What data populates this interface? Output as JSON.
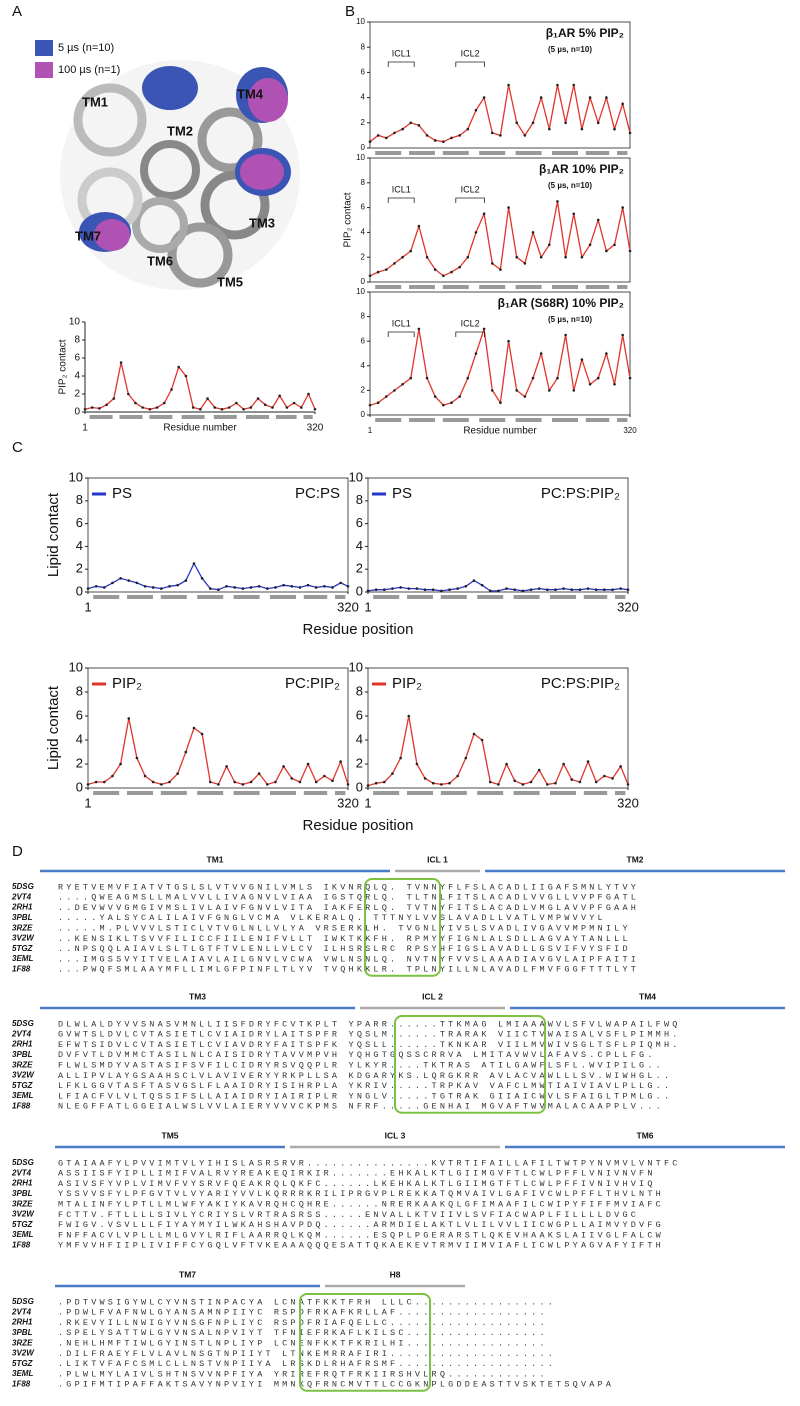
{
  "panel_labels": [
    "A",
    "B",
    "C",
    "D"
  ],
  "structure": {
    "legend": [
      {
        "text": "5 µs (n=10)",
        "color": "#3b55b4"
      },
      {
        "text": "100 µs (n=1)",
        "color": "#b052b3"
      }
    ],
    "helices": [
      "TM1",
      "TM2",
      "TM3",
      "TM4",
      "TM5",
      "TM6",
      "TM7"
    ]
  },
  "chart_data": [
    {
      "type": "line",
      "ylabel": "PIP₂ contact",
      "xlabel": "Residue number",
      "color": "#e0352c",
      "x": [
        1,
        11,
        21,
        31,
        41,
        51,
        61,
        71,
        81,
        91,
        101,
        111,
        121,
        131,
        141,
        151,
        161,
        171,
        181,
        191,
        201,
        211,
        221,
        231,
        241,
        251,
        261,
        271,
        281,
        291,
        301,
        311,
        320
      ],
      "values": [
        0.3,
        0.5,
        0.4,
        0.8,
        1.5,
        5.5,
        2,
        1,
        0.5,
        0.3,
        0.5,
        1,
        2.5,
        5,
        4,
        0.5,
        0.3,
        1.5,
        0.5,
        0.3,
        0.5,
        1,
        0.3,
        0.5,
        1.5,
        0.8,
        0.5,
        1.8,
        0.5,
        1,
        0.5,
        2,
        0.3
      ],
      "xlim": [
        1,
        320
      ],
      "xticks": [
        1,
        320
      ],
      "ylim": [
        0,
        10
      ],
      "yticks": [
        0,
        2,
        4,
        6,
        8,
        10
      ]
    },
    {
      "type": "line",
      "title": "β₁AR 5% PIP₂",
      "subtitle": "(5 µs, n=10)",
      "annotations": [
        "ICL1",
        "ICL2"
      ],
      "color": "#e0352c",
      "x": [
        1,
        11,
        21,
        31,
        41,
        51,
        61,
        71,
        81,
        91,
        101,
        111,
        121,
        131,
        141,
        151,
        161,
        171,
        181,
        191,
        201,
        211,
        221,
        231,
        241,
        251,
        261,
        271,
        281,
        291,
        301,
        311,
        320
      ],
      "values": [
        0.5,
        1,
        0.8,
        1.2,
        1.5,
        2,
        1.8,
        1,
        0.6,
        0.5,
        0.8,
        1,
        1.5,
        3,
        4,
        1.2,
        1,
        5,
        2,
        1,
        2,
        4,
        1.5,
        5,
        2,
        5,
        1.5,
        4,
        2,
        4,
        1.5,
        3.5,
        1.2
      ],
      "xlim": [
        1,
        320
      ],
      "ylim": [
        0,
        10
      ],
      "yticks": [
        0,
        2,
        4,
        6,
        8,
        10
      ]
    },
    {
      "type": "line",
      "title": "β₁AR 10% PIP₂",
      "subtitle": "(5 µs, n=10)",
      "annotations": [
        "ICL1",
        "ICL2"
      ],
      "ylabel": "PIP₂ contact",
      "color": "#e0352c",
      "x": [
        1,
        11,
        21,
        31,
        41,
        51,
        61,
        71,
        81,
        91,
        101,
        111,
        121,
        131,
        141,
        151,
        161,
        171,
        181,
        191,
        201,
        211,
        221,
        231,
        241,
        251,
        261,
        271,
        281,
        291,
        301,
        311,
        320
      ],
      "values": [
        0.5,
        0.8,
        1,
        1.5,
        2,
        2.5,
        4.5,
        2,
        1,
        0.5,
        0.8,
        1.2,
        2,
        4,
        5.5,
        1.5,
        1,
        6,
        2,
        1.5,
        4,
        2,
        3,
        6.5,
        2,
        5.5,
        2,
        3,
        5,
        2.5,
        3,
        6,
        2.5
      ],
      "xlim": [
        1,
        320
      ],
      "ylim": [
        0,
        10
      ],
      "yticks": [
        0,
        2,
        4,
        6,
        8,
        10
      ]
    },
    {
      "type": "line",
      "title": "β₁AR (S68R) 10% PIP₂",
      "subtitle": "(5 µs, n=10)",
      "annotations": [
        "ICL1",
        "ICL2"
      ],
      "xlabel": "Residue number",
      "color": "#e0352c",
      "x": [
        1,
        11,
        21,
        31,
        41,
        51,
        61,
        71,
        81,
        91,
        101,
        111,
        121,
        131,
        141,
        151,
        161,
        171,
        181,
        191,
        201,
        211,
        221,
        231,
        241,
        251,
        261,
        271,
        281,
        291,
        301,
        311,
        320
      ],
      "values": [
        0.8,
        1,
        1.5,
        2,
        2.5,
        3,
        7,
        3,
        1.5,
        0.8,
        1,
        1.5,
        3,
        5,
        7,
        2,
        1,
        6,
        2,
        1.5,
        3,
        5,
        2,
        3,
        6.5,
        2,
        4.5,
        2.5,
        3,
        5,
        2.5,
        6.5,
        3
      ],
      "xlim": [
        1,
        320
      ],
      "xticks": [
        1,
        320
      ],
      "ylim": [
        0,
        10
      ],
      "yticks": [
        0,
        2,
        4,
        6,
        8,
        10
      ]
    },
    {
      "type": "line",
      "label": "PC:PS",
      "ylabel": "Lipid contact",
      "xlabel": "Residue position",
      "legend": "upper left",
      "x": [
        1,
        11,
        21,
        31,
        41,
        51,
        61,
        71,
        81,
        91,
        101,
        111,
        121,
        131,
        141,
        151,
        161,
        171,
        181,
        191,
        201,
        211,
        221,
        231,
        241,
        251,
        261,
        271,
        281,
        291,
        301,
        311,
        320
      ],
      "series": [
        {
          "name": "PS",
          "color": "#2436c8",
          "values": [
            0.3,
            0.5,
            0.4,
            0.8,
            1.2,
            1,
            0.8,
            0.5,
            0.4,
            0.3,
            0.5,
            0.6,
            1,
            2.5,
            1.2,
            0.3,
            0.2,
            0.5,
            0.4,
            0.3,
            0.4,
            0.5,
            0.3,
            0.4,
            0.6,
            0.5,
            0.4,
            0.6,
            0.4,
            0.5,
            0.4,
            0.8,
            0.5
          ]
        }
      ],
      "xlim": [
        1,
        320
      ],
      "xticks": [
        1,
        320
      ],
      "ylim": [
        0,
        10
      ],
      "yticks": [
        0,
        2,
        4,
        6,
        8,
        10
      ]
    },
    {
      "type": "line",
      "label": "PC:PS:PIP₂",
      "legend": "upper left",
      "x": [
        1,
        11,
        21,
        31,
        41,
        51,
        61,
        71,
        81,
        91,
        101,
        111,
        121,
        131,
        141,
        151,
        161,
        171,
        181,
        191,
        201,
        211,
        221,
        231,
        241,
        251,
        261,
        271,
        281,
        291,
        301,
        311,
        320
      ],
      "series": [
        {
          "name": "PS",
          "color": "#2436c8",
          "values": [
            0.1,
            0.2,
            0.2,
            0.3,
            0.4,
            0.3,
            0.3,
            0.2,
            0.2,
            0.1,
            0.2,
            0.3,
            0.5,
            1,
            0.6,
            0.1,
            0.1,
            0.3,
            0.2,
            0.1,
            0.2,
            0.3,
            0.2,
            0.2,
            0.3,
            0.2,
            0.2,
            0.3,
            0.2,
            0.2,
            0.2,
            0.3,
            0.2
          ]
        }
      ],
      "xlim": [
        1,
        320
      ],
      "xticks": [
        1,
        320
      ],
      "ylim": [
        0,
        10
      ],
      "yticks": [
        0,
        2,
        4,
        6,
        8,
        10
      ]
    },
    {
      "type": "line",
      "label": "PC:PIP₂",
      "ylabel": "Lipid contact",
      "xlabel": "Residue position",
      "legend": "upper left",
      "x": [
        1,
        11,
        21,
        31,
        41,
        51,
        61,
        71,
        81,
        91,
        101,
        111,
        121,
        131,
        141,
        151,
        161,
        171,
        181,
        191,
        201,
        211,
        221,
        231,
        241,
        251,
        261,
        271,
        281,
        291,
        301,
        311,
        320
      ],
      "series": [
        {
          "name": "PIP₂",
          "color": "#e0352c",
          "values": [
            0.3,
            0.5,
            0.5,
            1,
            2,
            5.8,
            2.5,
            1,
            0.5,
            0.3,
            0.5,
            1.2,
            3,
            5,
            4.5,
            0.5,
            0.3,
            1.8,
            0.5,
            0.3,
            0.5,
            1.2,
            0.3,
            0.5,
            1.8,
            0.8,
            0.5,
            2,
            0.5,
            1,
            0.6,
            2.2,
            0.3
          ]
        }
      ],
      "xlim": [
        1,
        320
      ],
      "xticks": [
        1,
        320
      ],
      "ylim": [
        0,
        10
      ],
      "yticks": [
        0,
        2,
        4,
        6,
        8,
        10
      ]
    },
    {
      "type": "line",
      "label": "PC:PS:PIP₂",
      "legend": "upper left",
      "x": [
        1,
        11,
        21,
        31,
        41,
        51,
        61,
        71,
        81,
        91,
        101,
        111,
        121,
        131,
        141,
        151,
        161,
        171,
        181,
        191,
        201,
        211,
        221,
        231,
        241,
        251,
        261,
        271,
        281,
        291,
        301,
        311,
        320
      ],
      "series": [
        {
          "name": "PIP₂",
          "color": "#e0352c",
          "values": [
            0.2,
            0.4,
            0.5,
            1.2,
            2.5,
            6,
            2,
            0.8,
            0.4,
            0.3,
            0.4,
            1,
            2.5,
            4.5,
            4,
            0.5,
            0.3,
            2,
            0.6,
            0.3,
            0.5,
            1.5,
            0.3,
            0.4,
            2,
            0.7,
            0.5,
            2.2,
            0.5,
            1,
            0.8,
            1.8,
            0.3
          ]
        }
      ],
      "xlim": [
        1,
        320
      ],
      "xticks": [
        1,
        320
      ],
      "ylim": [
        0,
        10
      ],
      "yticks": [
        0,
        2,
        4,
        6,
        8,
        10
      ]
    }
  ],
  "alignment": {
    "blocks": [
      {
        "regions": [
          "TM1",
          "ICL 1",
          "TM2"
        ],
        "rows": [
          {
            "id": "5DSG",
            "seq": "RYETVEMVFIATVTGSLSLVTVVGNILVMLS IKVNRQLQ. TVNNYFLFSLACADLIIGAFSMNLYTVY"
          },
          {
            "id": "2VT4",
            "seq": "....QWEAGMSLLMALVVLLIVAGNVLVIAA IGSTQRLQ. TLTNLFITSLACADLVVGLLVVPFGATL"
          },
          {
            "id": "2RH1",
            "seq": "..DEVWVVGMGIVMSLIVLAIVFGNVLVITA IAKFERLQ. TVTNYFITSLACADLVMGLAVVPFGAAH"
          },
          {
            "id": "3PBL",
            "seq": ".....YALSYCALILAIVFGNGLVCMA VLKERALQ. TTTNYLVVSLAVADLLVATLVMPWVVYL"
          },
          {
            "id": "3RZE",
            "seq": ".....M.PLVVVLSTICLVTVGLNLLVLYA VRSERKLH. TVGNLYIVSLSVADLIVGAVVMPMNILY"
          },
          {
            "id": "3V2W",
            "seq": "..KENSIKLTSVVFILICCFIILENIFVLLT IWKTKKFH. RPMYYFIGNLALSDLLAGVAYTANLLL"
          },
          {
            "id": "5TGZ",
            "seq": "..NPSQQLAIAVLSLTLGTFTVLENLLVLCV ILHSRSLRC RPSYHFIGSLAVADLLGSVIFVYSFID"
          },
          {
            "id": "3EML",
            "seq": "...IMGSSVYITVELAIAVLAILGNVLVCWA VWLNSNLQ. NVTNYFVVSLAAADIAVGVLAIPFAITI"
          },
          {
            "id": "1F88",
            "seq": "...PWQFSMLAAYMFLLIMLGFPINFLTLYV TVQHKKLR. TPLNYILLNLAVADLFMVFGGFTTTLYT"
          }
        ]
      },
      {
        "regions": [
          "TM3",
          "ICL 2",
          "TM4"
        ],
        "rows": [
          {
            "id": "5DSG",
            "seq": "DLWLALDYVVSNASVMNLLIISFDRYFCVTKPLT YPARR......TTKMAG LMIAAAWVLSFVLWAPAILFWQ"
          },
          {
            "id": "2VT4",
            "seq": "GVWTSLDVLCVTASIETLCVIAIDRYLAITSPFR YQSLM......TRARAK VIICTVWAISALVSFLPIMMH."
          },
          {
            "id": "2RH1",
            "seq": "EFWTSIDVLCVTASIETLCVIAVDRYFAITSPFK YQSLL......TKNKAR VIILMVWIVSGLTSFLPIQMH."
          },
          {
            "id": "3PBL",
            "seq": "DVFVTLDVMMCTASILNLCAISIDRYTAVVMPVH YQHGTGQSSCRRVA LMITAVWVLAFAVS.CPLLFG."
          },
          {
            "id": "3RZE",
            "seq": "FLWLSMDYVASTASIFSVFILCIDRYRSVQQPLR YLKYR....TKTRAS ATILGAWFLSFL.WVIPILG.."
          },
          {
            "id": "3V2W",
            "seq": "ALLIPVLAYGSAAHSCLVLAVIVERYYRKPLLSA KDGARYKS.LQRGKRR AVLACVAWLLLSV.WIWHGL.."
          },
          {
            "id": "5TGZ",
            "seq": "LFKLGGVTASFTASVGSLFLAAIDRYISIHRPLA YKRIV.....TRPKAV VAFCLMWTIAIVIAVLPLLG.."
          },
          {
            "id": "3EML",
            "seq": "LFIACFVLVLTQSSIFSLLAIAIDRYIAIRIPLR YNGLV.....TGTRAK GIIAICWVLSFAIGLTPMLG.."
          },
          {
            "id": "1F88",
            "seq": "NLEGFFATLGGEIALWSLVVLAIERYVVVCKPMS NFRF.....GENHAI MGVAFTWVMALACAAPPLV..."
          }
        ]
      },
      {
        "regions": [
          "TM5",
          "ICL 3",
          "TM6"
        ],
        "rows": [
          {
            "id": "5DSG",
            "seq": "GTAIAAFYLPVVIMTVLYIHISLASRSRVR...............KVTRTIFAILLAFILTWTPYNVMVLVNTFC"
          },
          {
            "id": "2VT4",
            "seq": "ASSIISFYIPLLIMIFVALRVYREAKEQIRKIR.......EHKALKTLGIIMGVFTLCWLPFFLVNIVNVFN"
          },
          {
            "id": "2RH1",
            "seq": "ASIVSFYVPLVIMVFVYSRVFQEAKRQLQKFC......LKEHKALKTLGIIMGTFTLCWLPFFIVNIVHVIQ"
          },
          {
            "id": "3PBL",
            "seq": "YSSVVSFYLPFGVTVLVYARIYVVLKQRRRKRILIPRGVPLREKKATQMVAIVLGAFIVCWLPFFLTHVLNTH"
          },
          {
            "id": "3RZE",
            "seq": "MTALINFYLPTLLMLWFYAKIYKAVRQHCQHRE......NRERKAAKQLGFIMAAFILCWIPYFIFFMVIAFC"
          },
          {
            "id": "3V2W",
            "seq": "FCTTV.FTLLLLSIVLYCRIYSLVRTRASRSS.....ENVALLKTVIIVLSVFIACWAPLFILLLLDVGC"
          },
          {
            "id": "5TGZ",
            "seq": "FWIGV.VSVLLLFIYAYMYILWKAHSHAVPDQ......ARMDIELAKTLVLILVVLIICWGPLLAIMVYDVFG"
          },
          {
            "id": "3EML",
            "seq": "FNFFACVLVPLLLMLGVYLRIFLAARRQLKQM......ESQPLPGERARSTLQKEVHAAKSLAIIVGLFALCW"
          },
          {
            "id": "1F88",
            "seq": "YMFVVHFIIPLIVIFFCYGQLVFTVKEAAAQQQESATTQKAEKEVTRMVIIMVIAFLICWLPYAGVAFYIFTH"
          }
        ]
      },
      {
        "regions": [
          "TM7",
          "H8"
        ],
        "rows": [
          {
            "id": "5DSG",
            "seq": ".PDTVWSIGYWLCYVNSTINPACYA LCNATFKKTFRH LLLC................."
          },
          {
            "id": "2VT4",
            "seq": ".PDWLFVAFNWLGYANSAMNPIIYC RSPDFRKAFKRLLAF.................."
          },
          {
            "id": "2RH1",
            "seq": ".RKEVYILLNWIGYVNSGFNPLIYC RSPDFRIAFQELLC..................."
          },
          {
            "id": "3PBL",
            "seq": ".SPELYSATTWLGYVNSALNPVIYT TFNIEFRKAFLKILSC................."
          },
          {
            "id": "3RZE",
            "seq": ".NEHLHMFTIWLGYINSTLNPLIYP LCNENFKKTFKRILHI................."
          },
          {
            "id": "3V2W",
            "seq": ".DILFRAEYFLVLAVLNSGTNPIIYT LTNKEMRRAFIRI...................."
          },
          {
            "id": "5TGZ",
            "seq": ".LIKTVFAFCSMLCLLNSTVNPIIYA LRSKDLRHAFRSMF..................."
          },
          {
            "id": "3EML",
            "seq": ".PLWLMYLAIVLSHTNSVVNPFIYA YRIREFRQTFRKIIRSHVLRQ............"
          },
          {
            "id": "1F88",
            "seq": ".GPIFMTIPAFFAKTSAVYNPVIYI MMNKQFRNCMVTTLCCGKNPLGDDEASTTVSKTETSQVAPA"
          }
        ]
      }
    ]
  }
}
